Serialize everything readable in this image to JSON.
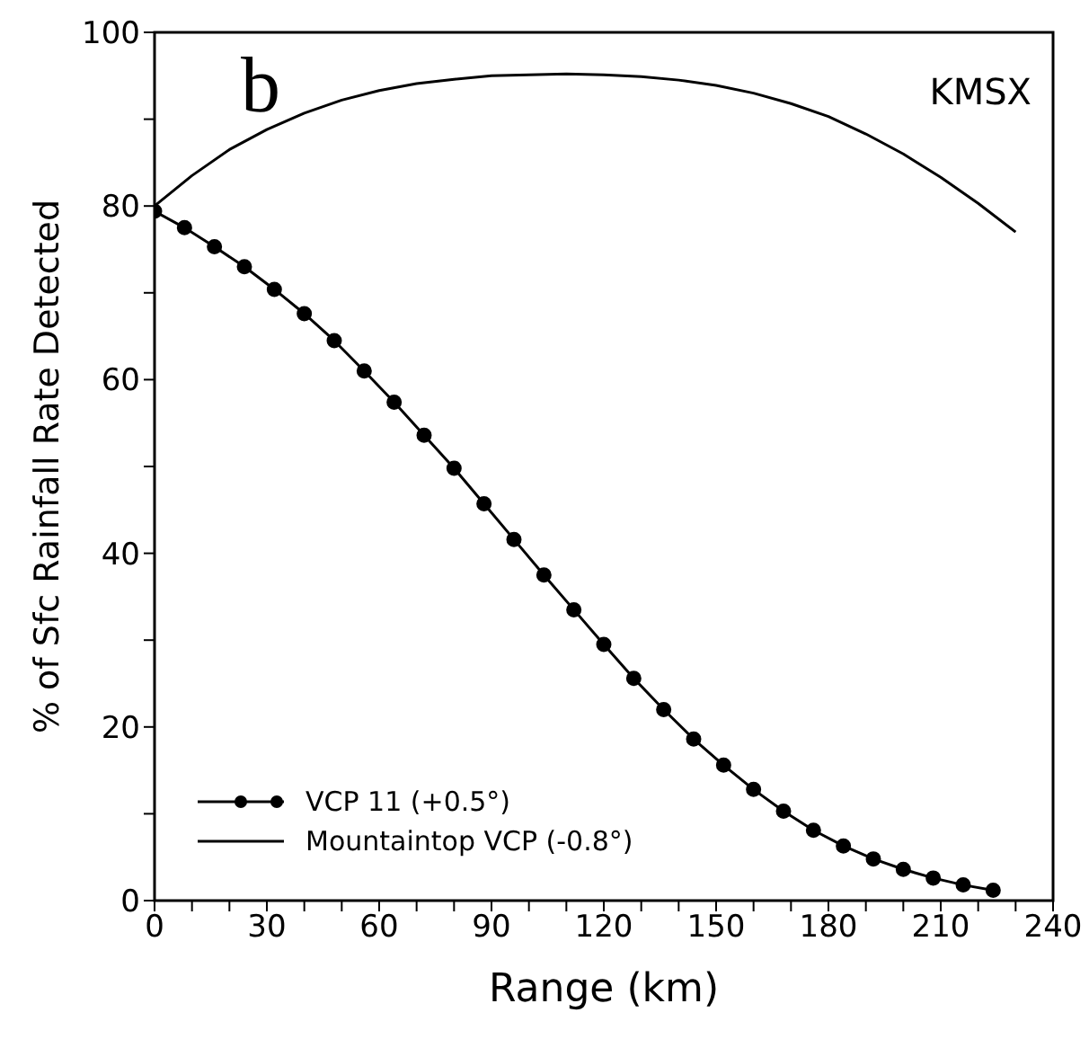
{
  "chart_data": {
    "type": "line",
    "xlabel": "Range (km)",
    "ylabel": "% of Sfc Rainfall Rate Detected",
    "annotations": [
      "b",
      "KMSX"
    ],
    "xlim": [
      0,
      240
    ],
    "ylim": [
      0,
      100
    ],
    "xticks": [
      0,
      {
        "value": 10,
        "label": null
      },
      {
        "value": 20,
        "label": null
      },
      30,
      {
        "value": 40,
        "label": null
      },
      {
        "value": 50,
        "label": null
      },
      60,
      {
        "value": 70,
        "label": null
      },
      {
        "value": 80,
        "label": null
      },
      90,
      {
        "value": 100,
        "label": null
      },
      {
        "value": 110,
        "label": null
      },
      120,
      {
        "value": 130,
        "label": null
      },
      {
        "value": 140,
        "label": null
      },
      150,
      {
        "value": 160,
        "label": null
      },
      {
        "value": 170,
        "label": null
      },
      180,
      {
        "value": 190,
        "label": null
      },
      {
        "value": 200,
        "label": null
      },
      210,
      {
        "value": 220,
        "label": null
      },
      {
        "value": 230,
        "label": null
      },
      240
    ],
    "yticks": [
      0,
      {
        "value": 10,
        "label": null
      },
      20,
      {
        "value": 30,
        "label": null
      },
      40,
      {
        "value": 50,
        "label": null
      },
      60,
      {
        "value": 70,
        "label": null
      },
      80,
      {
        "value": 90,
        "label": null
      },
      100
    ],
    "grid": false,
    "legend": "bottom left",
    "line_style": "solid",
    "series": [
      {
        "name": "VCP 11 (+0.5°)",
        "color": "#000000",
        "marker": "circle",
        "x": [
          0,
          8,
          16,
          24,
          32,
          40,
          48,
          56,
          64,
          72,
          80,
          88,
          96,
          104,
          112,
          120,
          128,
          136,
          144,
          152,
          160,
          168,
          176,
          184,
          192,
          200,
          208,
          216,
          224
        ],
        "values": [
          79.4,
          77.5,
          75.3,
          73,
          70.4,
          67.6,
          64.5,
          61,
          57.4,
          53.6,
          49.8,
          45.7,
          41.6,
          37.5,
          33.5,
          29.5,
          25.6,
          22,
          18.6,
          15.6,
          12.8,
          10.3,
          8.1,
          6.3,
          4.8,
          3.6,
          2.6,
          1.8,
          1.2
        ]
      },
      {
        "name": "Mountaintop VCP (-0.8°)",
        "color": "#000000",
        "marker": "none",
        "x": [
          0,
          10,
          20,
          30,
          40,
          50,
          60,
          70,
          80,
          90,
          100,
          110,
          120,
          130,
          140,
          150,
          160,
          170,
          180,
          190,
          200,
          210,
          220,
          230
        ],
        "values": [
          80,
          83.5,
          86.5,
          88.8,
          90.7,
          92.2,
          93.3,
          94.1,
          94.6,
          95,
          95.1,
          95.2,
          95.1,
          94.9,
          94.5,
          93.9,
          93,
          91.8,
          90.3,
          88.3,
          86,
          83.3,
          80.3,
          77
        ]
      }
    ]
  }
}
